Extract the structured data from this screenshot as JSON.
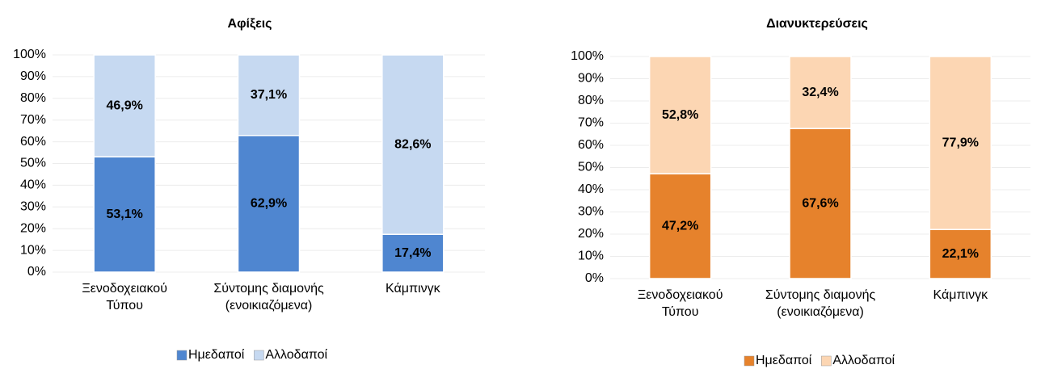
{
  "chart_data": [
    {
      "type": "bar",
      "stacked": true,
      "title": "Αφίξεις",
      "categories": [
        "Ξενοδοχειακού\nΤύπου",
        "Σύντομης διαμονής\n(ενοικιαζόμενα)",
        "Κάμπινγκ"
      ],
      "series": [
        {
          "name": "Ημεδαποί",
          "color": "#4f86d0",
          "values": [
            53.1,
            62.9,
            17.4
          ],
          "value_labels": [
            "53,1%",
            "62,9%",
            "17,4%"
          ]
        },
        {
          "name": "Αλλοδαποί",
          "color": "#c6d9f1",
          "values": [
            46.9,
            37.1,
            82.6
          ],
          "value_labels": [
            "46,9%",
            "37,1%",
            "82,6%"
          ]
        }
      ],
      "ylim": [
        0,
        100
      ],
      "yticks": [
        {
          "value": 0,
          "label": "0%"
        },
        {
          "value": 10,
          "label": "10%"
        },
        {
          "value": 20,
          "label": "20%"
        },
        {
          "value": 30,
          "label": "30%"
        },
        {
          "value": 40,
          "label": "40%"
        },
        {
          "value": 50,
          "label": "50%"
        },
        {
          "value": 60,
          "label": "60%"
        },
        {
          "value": 70,
          "label": "70%"
        },
        {
          "value": 80,
          "label": "80%"
        },
        {
          "value": 90,
          "label": "90%"
        },
        {
          "value": 100,
          "label": "100%"
        }
      ],
      "grid": true,
      "legend": "bottom"
    },
    {
      "type": "bar",
      "stacked": true,
      "title": "Διανυκτερεύσεις",
      "categories": [
        "Ξενοδοχειακού\nΤύπου",
        "Σύντομης διαμονής\n(ενοικιαζόμενα)",
        "Κάμπινγκ"
      ],
      "series": [
        {
          "name": "Ημεδαποί",
          "color": "#e6822c",
          "values": [
            47.2,
            67.6,
            22.1
          ],
          "value_labels": [
            "47,2%",
            "67,6%",
            "22,1%"
          ]
        },
        {
          "name": "Αλλοδαποί",
          "color": "#fcd6b3",
          "values": [
            52.8,
            32.4,
            77.9
          ],
          "value_labels": [
            "52,8%",
            "32,4%",
            "77,9%"
          ]
        }
      ],
      "ylim": [
        0,
        100
      ],
      "yticks": [
        {
          "value": 0,
          "label": "0%"
        },
        {
          "value": 10,
          "label": "10%"
        },
        {
          "value": 20,
          "label": "20%"
        },
        {
          "value": 30,
          "label": "30%"
        },
        {
          "value": 40,
          "label": "40%"
        },
        {
          "value": 50,
          "label": "50%"
        },
        {
          "value": 60,
          "label": "60%"
        },
        {
          "value": 70,
          "label": "70%"
        },
        {
          "value": 80,
          "label": "80%"
        },
        {
          "value": 90,
          "label": "90%"
        },
        {
          "value": 100,
          "label": "100%"
        }
      ],
      "grid": true,
      "legend": "bottom"
    }
  ]
}
